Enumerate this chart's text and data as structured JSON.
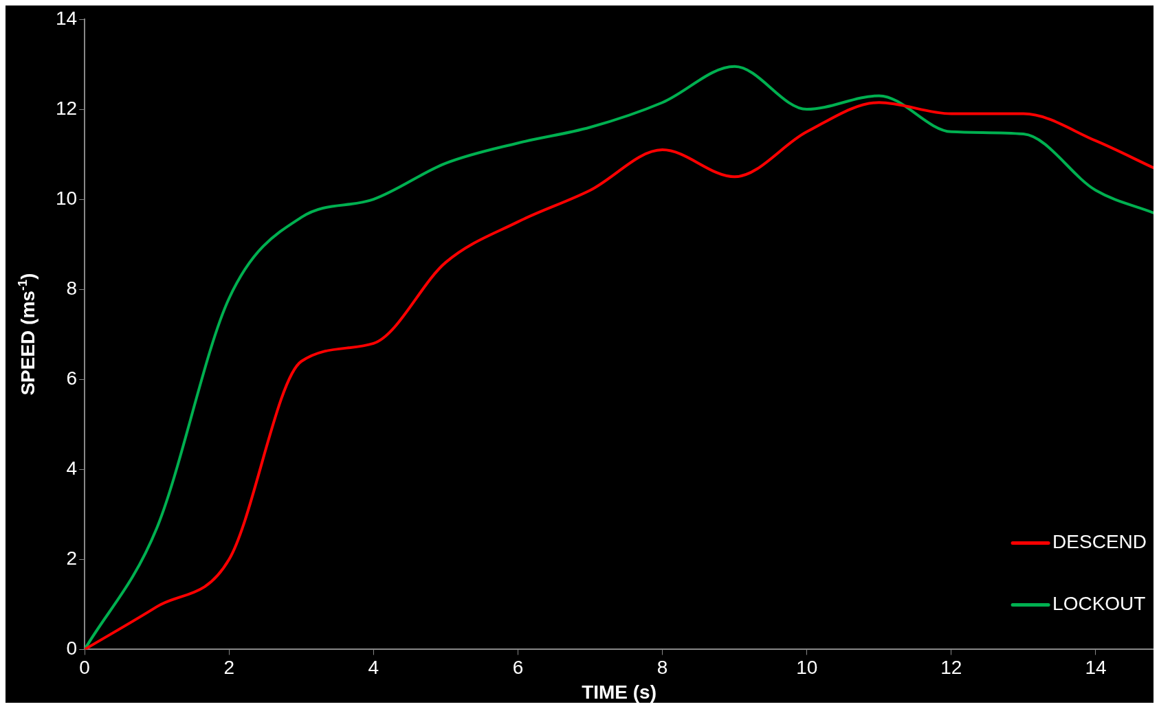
{
  "chart_data": {
    "type": "line",
    "xlabel": "TIME (s)",
    "ylabel": "SPEED (ms$^{-1}$)",
    "xlim": [
      0,
      14.8
    ],
    "xticks": [
      0,
      2,
      4,
      6,
      8,
      10,
      12,
      14
    ],
    "ylim": [
      0,
      14
    ],
    "yticks": [
      0,
      2,
      4,
      6,
      8,
      10,
      12,
      14
    ],
    "x": [
      0,
      1,
      2,
      3,
      4,
      5,
      6,
      7,
      8,
      9,
      10,
      11,
      12,
      13,
      14,
      14.8
    ],
    "series": [
      {
        "name": "DESCEND",
        "color": "#ff0000",
        "values": [
          0,
          0.95,
          2.0,
          6.4,
          6.8,
          8.6,
          9.5,
          10.2,
          11.1,
          10.5,
          11.5,
          12.15,
          11.9,
          11.9,
          11.3,
          10.7
        ]
      },
      {
        "name": "LOCKOUT",
        "color": "#00b050",
        "values": [
          0,
          2.7,
          7.8,
          9.6,
          10.0,
          10.8,
          11.25,
          11.6,
          12.15,
          12.95,
          12.0,
          12.3,
          11.5,
          11.45,
          10.2,
          9.7
        ]
      }
    ],
    "grid": false,
    "legend": "bottom right",
    "marker": "none",
    "line_style": "solid"
  }
}
